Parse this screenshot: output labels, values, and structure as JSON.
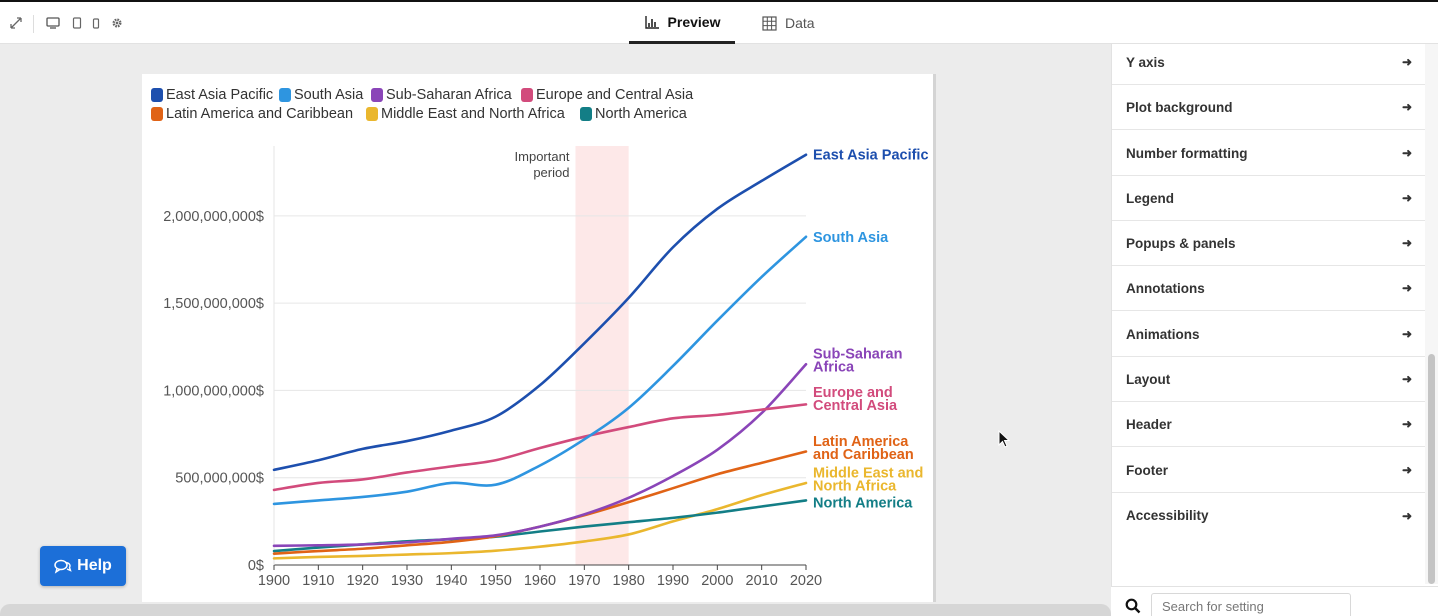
{
  "toolbar": {
    "icons": [
      "expand-icon",
      "desktop-icon",
      "tablet-icon",
      "mobile-icon",
      "gear-icon"
    ],
    "tabs": [
      {
        "label": "Preview",
        "icon": "bar-chart-icon",
        "active": true
      },
      {
        "label": "Data",
        "icon": "table-icon",
        "active": false
      }
    ]
  },
  "chart_data": {
    "type": "line",
    "title": "",
    "annotation": {
      "label_line1": "Important",
      "label_line2": "period",
      "range": [
        1968,
        1980
      ],
      "color": "#fde8e8"
    },
    "x": [
      1900,
      1910,
      1920,
      1930,
      1940,
      1950,
      1960,
      1970,
      1980,
      1990,
      2000,
      2010,
      2020
    ],
    "xlim": [
      1900,
      2020
    ],
    "ylim": [
      0,
      2400000000
    ],
    "xticks": [
      "1900",
      "1910",
      "1920",
      "1930",
      "1940",
      "1950",
      "1960",
      "1970",
      "1980",
      "1990",
      "2000",
      "2010",
      "2020"
    ],
    "yticks": [
      {
        "value": 0,
        "label": "0$"
      },
      {
        "value": 500000000,
        "label": "500,000,000$"
      },
      {
        "value": 1000000000,
        "label": "1,000,000,000$"
      },
      {
        "value": 1500000000,
        "label": "1,500,000,000$"
      },
      {
        "value": 2000000000,
        "label": "2,000,000,000$"
      }
    ],
    "series": [
      {
        "name": "East Asia Pacific",
        "color": "#1d4fae",
        "end_label": [
          "East Asia Pacific"
        ],
        "values": [
          545000000,
          600000000,
          665000000,
          710000000,
          770000000,
          850000000,
          1030000000,
          1270000000,
          1530000000,
          1820000000,
          2040000000,
          2200000000,
          2350000000
        ]
      },
      {
        "name": "South Asia",
        "color": "#2e95e0",
        "end_label": [
          "South Asia"
        ],
        "values": [
          350000000,
          370000000,
          390000000,
          420000000,
          470000000,
          460000000,
          570000000,
          720000000,
          900000000,
          1140000000,
          1400000000,
          1650000000,
          1880000000
        ]
      },
      {
        "name": "Sub-Saharan Africa",
        "color": "#8a45b8",
        "end_label": [
          "Sub-Saharan",
          "Africa"
        ],
        "values": [
          110000000,
          113000000,
          118000000,
          130000000,
          150000000,
          170000000,
          220000000,
          290000000,
          385000000,
          510000000,
          660000000,
          870000000,
          1150000000
        ]
      },
      {
        "name": "Europe and Central Asia",
        "color": "#d24b7c",
        "end_label": [
          "Europe and",
          "Central Asia"
        ],
        "values": [
          430000000,
          470000000,
          490000000,
          530000000,
          565000000,
          600000000,
          670000000,
          735000000,
          790000000,
          840000000,
          860000000,
          890000000,
          920000000
        ]
      },
      {
        "name": "Latin America and Caribbean",
        "color": "#e06316",
        "end_label": [
          "Latin America",
          "and Caribbean"
        ],
        "values": [
          65000000,
          80000000,
          93000000,
          113000000,
          133000000,
          165000000,
          220000000,
          285000000,
          360000000,
          440000000,
          520000000,
          585000000,
          650000000
        ]
      },
      {
        "name": "Middle East and North Africa",
        "color": "#eab72e",
        "end_label": [
          "Middle East and",
          "North Africa"
        ],
        "values": [
          38000000,
          46000000,
          52000000,
          60000000,
          68000000,
          82000000,
          105000000,
          135000000,
          175000000,
          250000000,
          320000000,
          400000000,
          470000000
        ]
      },
      {
        "name": "North America",
        "color": "#137e86",
        "end_label": [
          "North America"
        ],
        "values": [
          80000000,
          100000000,
          118000000,
          136000000,
          148000000,
          162000000,
          192000000,
          220000000,
          245000000,
          270000000,
          300000000,
          335000000,
          370000000
        ]
      }
    ]
  },
  "settings": {
    "items": [
      "Y axis",
      "Plot background",
      "Number formatting",
      "Legend",
      "Popups & panels",
      "Annotations",
      "Animations",
      "Layout",
      "Header",
      "Footer",
      "Accessibility"
    ],
    "arrow": "➜",
    "search_placeholder": "Search for setting"
  },
  "help": {
    "label": "Help"
  }
}
